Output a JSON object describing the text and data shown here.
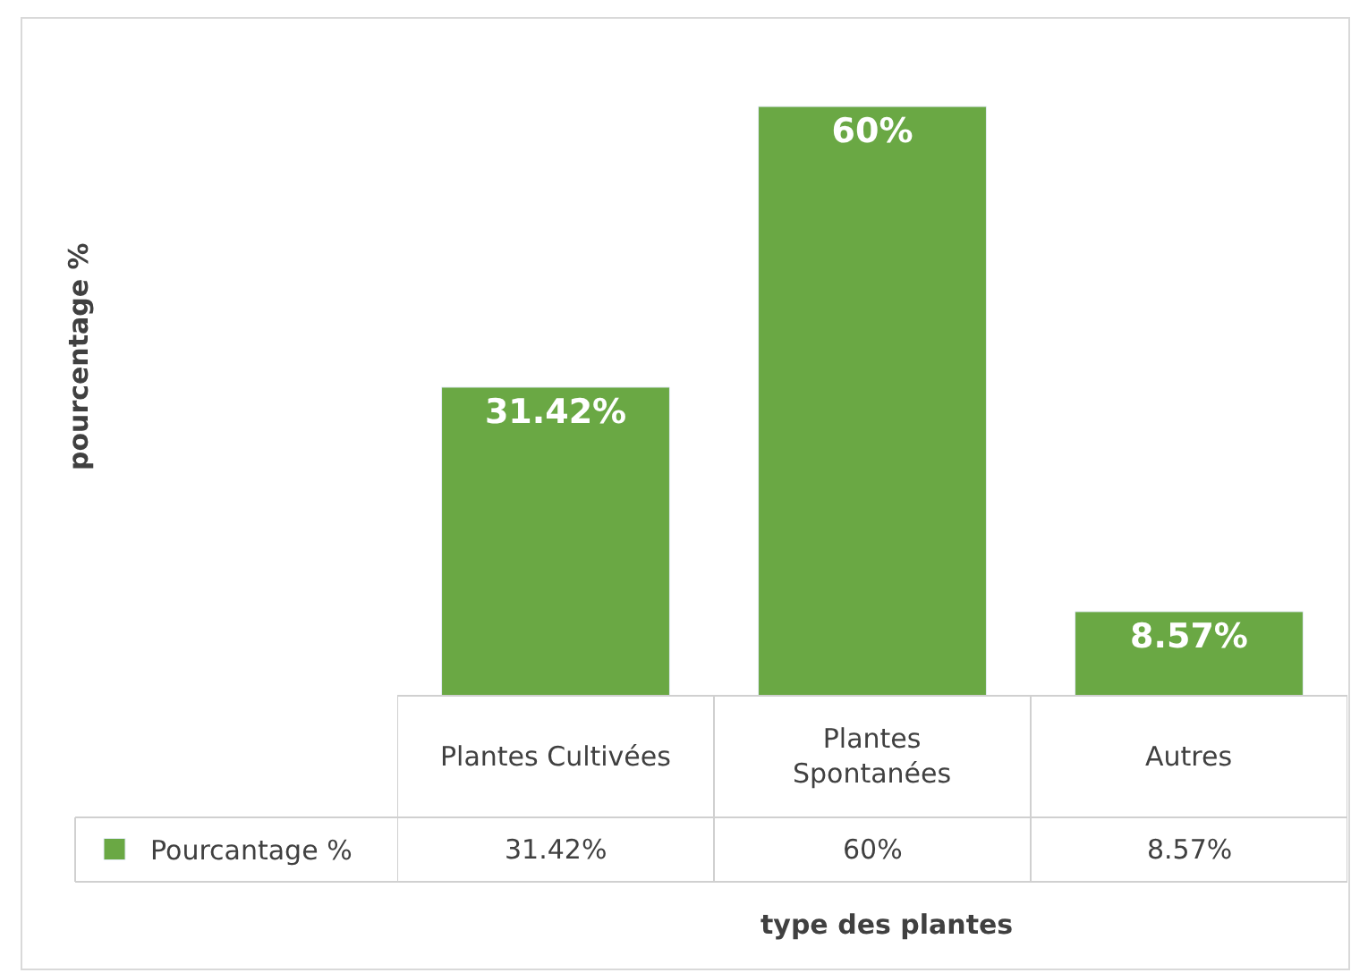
{
  "chart_data": {
    "type": "bar",
    "annotations": [
      "type des plantes",
      "pourcentage %"
    ],
    "categories": [
      "Plantes Cultivées",
      "Plantes Spontanées",
      "Autres"
    ],
    "series": [
      {
        "name": "Pourcantage %",
        "color": "#6aa844",
        "values": [
          31.42,
          60,
          8.57
        ],
        "value_labels": [
          "31.42%",
          "60%",
          "8.57%"
        ]
      }
    ],
    "legend": "bottom left"
  }
}
